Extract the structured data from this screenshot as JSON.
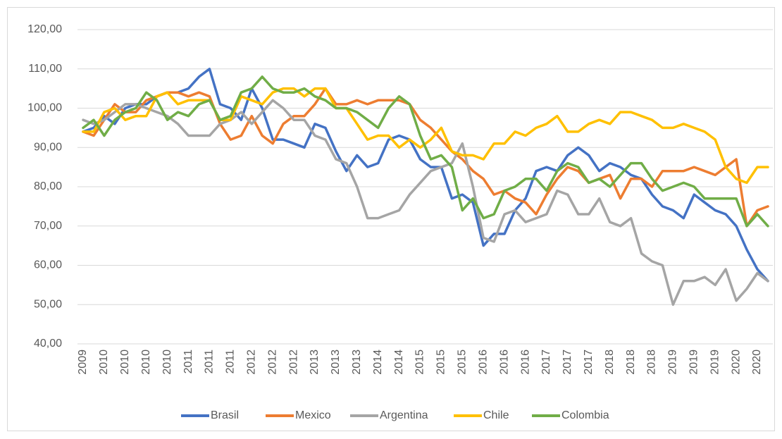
{
  "chart_data": {
    "type": "line",
    "categories": [
      "2009",
      null,
      "2010",
      null,
      "2010",
      null,
      "2010",
      null,
      "2010",
      null,
      "2011",
      null,
      "2011",
      null,
      "2011",
      null,
      "2012",
      null,
      "2012",
      null,
      "2012",
      null,
      "2013",
      null,
      "2013",
      null,
      "2013",
      null,
      "2014",
      null,
      "2014",
      null,
      "2015",
      null,
      "2015",
      null,
      "2015",
      null,
      "2016",
      null,
      "2016",
      null,
      "2016",
      null,
      "2017",
      null,
      "2017",
      null,
      "2017",
      null,
      "2018",
      null,
      "2018",
      null,
      "2018",
      null,
      "2019",
      null,
      "2019",
      null,
      "2019",
      null,
      "2020",
      null,
      "2020",
      null
    ],
    "series": [
      {
        "name": "Brasil",
        "color": "#4472c4",
        "values": [
          94,
          95,
          98,
          96,
          100,
          101,
          101,
          103,
          104,
          104,
          105,
          108,
          110,
          101,
          100,
          97,
          105,
          100,
          92,
          92,
          91,
          90,
          96,
          95,
          89,
          84,
          88,
          85,
          86,
          92,
          93,
          92,
          87,
          85,
          85,
          77,
          78,
          76,
          65,
          68,
          68,
          74,
          77,
          84,
          85,
          84,
          88,
          90,
          88,
          84,
          86,
          85,
          83,
          82,
          78,
          75,
          74,
          72,
          78,
          76,
          74,
          73,
          70,
          64,
          59,
          56
        ]
      },
      {
        "name": "Mexico",
        "color": "#ed7d31",
        "values": [
          94,
          93,
          97,
          101,
          99,
          99,
          102,
          103,
          104,
          104,
          103,
          104,
          103,
          96,
          92,
          93,
          98,
          93,
          91,
          96,
          98,
          98,
          101,
          105,
          101,
          101,
          102,
          101,
          102,
          102,
          102,
          101,
          97,
          95,
          92,
          89,
          87,
          84,
          82,
          78,
          79,
          77,
          76,
          73,
          78,
          82,
          85,
          84,
          81,
          82,
          83,
          77,
          82,
          82,
          80,
          84,
          84,
          84,
          85,
          84,
          83,
          85,
          87,
          70,
          74,
          75
        ]
      },
      {
        "name": "Argentina",
        "color": "#a5a5a5",
        "values": [
          97,
          96,
          97,
          99,
          101,
          101,
          100,
          99,
          98,
          96,
          93,
          93,
          93,
          96,
          97,
          99,
          96,
          99,
          102,
          100,
          97,
          97,
          93,
          92,
          87,
          86,
          80,
          72,
          72,
          73,
          74,
          78,
          81,
          84,
          85,
          86,
          91,
          80,
          67,
          66,
          73,
          74,
          71,
          72,
          73,
          79,
          78,
          73,
          73,
          77,
          71,
          70,
          72,
          63,
          61,
          60,
          50,
          56,
          56,
          57,
          55,
          59,
          51,
          54,
          58,
          56
        ]
      },
      {
        "name": "Chile",
        "color": "#ffc000",
        "values": [
          94,
          94,
          99,
          100,
          97,
          98,
          98,
          103,
          104,
          101,
          102,
          102,
          102,
          97,
          97,
          103,
          102,
          101,
          104,
          105,
          105,
          103,
          105,
          105,
          100,
          100,
          96,
          92,
          93,
          93,
          90,
          92,
          90,
          92,
          95,
          89,
          88,
          88,
          87,
          91,
          91,
          94,
          93,
          95,
          96,
          98,
          94,
          94,
          96,
          97,
          96,
          99,
          99,
          98,
          97,
          95,
          95,
          96,
          95,
          94,
          92,
          85,
          82,
          81,
          85,
          85
        ]
      },
      {
        "name": "Colombia",
        "color": "#70ad47",
        "values": [
          95,
          97,
          93,
          97,
          99,
          100,
          104,
          102,
          97,
          99,
          98,
          101,
          102,
          97,
          98,
          104,
          105,
          108,
          105,
          104,
          104,
          105,
          103,
          102,
          100,
          100,
          99,
          97,
          95,
          100,
          103,
          101,
          93,
          87,
          88,
          85,
          74,
          77,
          72,
          73,
          79,
          80,
          82,
          82,
          79,
          84,
          86,
          85,
          81,
          82,
          80,
          83,
          86,
          86,
          82,
          79,
          80,
          81,
          80,
          77,
          77,
          77,
          77,
          70,
          73,
          70
        ]
      }
    ],
    "ylim": [
      40,
      120
    ],
    "yticks": [
      {
        "value": 40,
        "label": "40,00"
      },
      {
        "value": 50,
        "label": "50,00"
      },
      {
        "value": 60,
        "label": "60,00"
      },
      {
        "value": 70,
        "label": "70,00"
      },
      {
        "value": 80,
        "label": "80,00"
      },
      {
        "value": 90,
        "label": "90,00"
      },
      {
        "value": 100,
        "label": "100,00"
      },
      {
        "value": 110,
        "label": "110,00"
      },
      {
        "value": 120,
        "label": "120,00"
      }
    ],
    "grid": true,
    "legend": "bottom"
  }
}
